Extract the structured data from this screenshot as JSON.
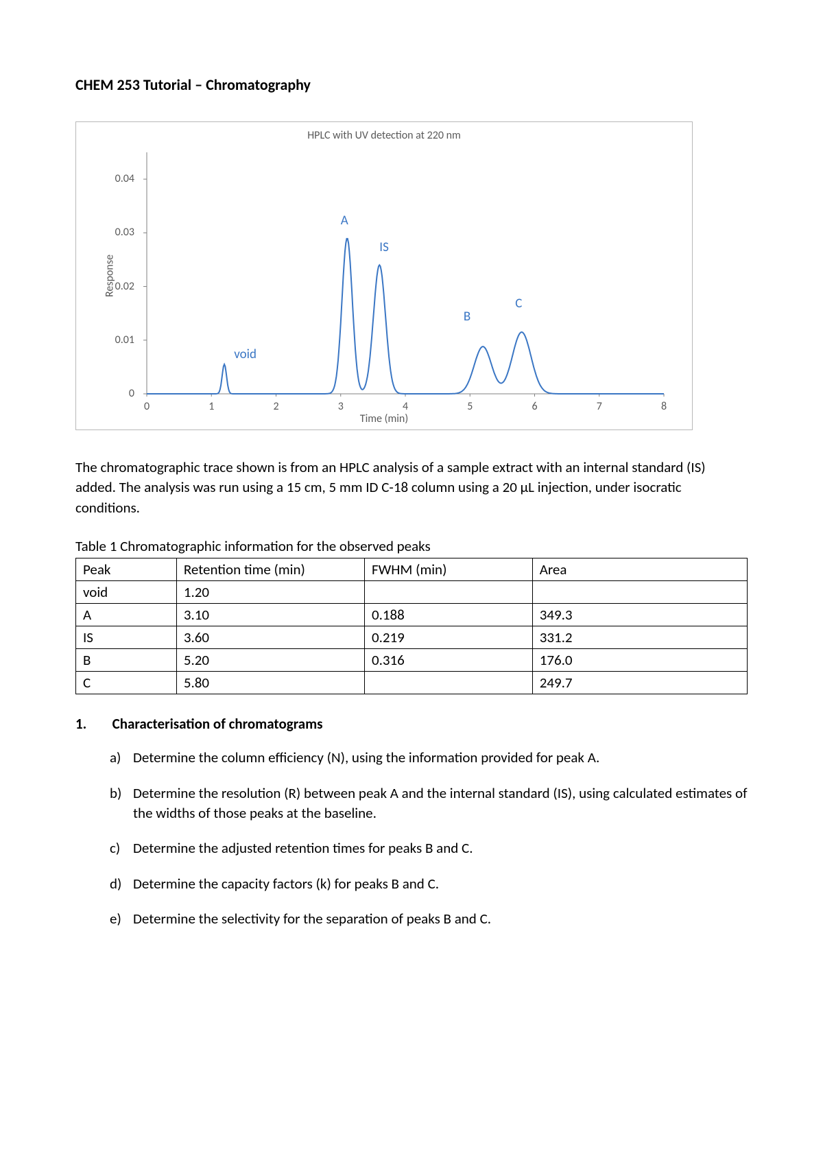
{
  "title": "CHEM 253 Tutorial – Chromatography",
  "chart": {
    "type": "line",
    "title": "HPLC with UV detection at 220 nm",
    "x_axis_label": "Time (min)",
    "y_axis_label": "Response",
    "xlim": [
      0,
      8
    ],
    "ylim": [
      0,
      0.045
    ],
    "x_ticks": [
      0,
      1,
      2,
      3,
      4,
      5,
      6,
      7,
      8
    ],
    "y_ticks": [
      0,
      0.01,
      0.02,
      0.03,
      0.04
    ],
    "line_color": "#3a76c4",
    "axis_color": "#808080",
    "label_color": "#3a76c4",
    "tick_label_color": "#595959",
    "title_fontsize": 16,
    "tick_fontsize": 16,
    "label_fontsize": 19,
    "peak_labels": [
      {
        "text": "void",
        "x_min": 1.35,
        "y_resp": 0.006
      },
      {
        "text": "A",
        "x_min": 3.0,
        "y_resp": 0.031
      },
      {
        "text": "IS",
        "x_min": 3.6,
        "y_resp": 0.026
      },
      {
        "text": "B",
        "x_min": 4.9,
        "y_resp": 0.013
      },
      {
        "text": "C",
        "x_min": 5.7,
        "y_resp": 0.0155
      }
    ],
    "peaks": [
      {
        "rt": 1.2,
        "height": 0.0055,
        "fwhm": 0.08
      },
      {
        "rt": 3.1,
        "height": 0.029,
        "fwhm": 0.188
      },
      {
        "rt": 3.6,
        "height": 0.024,
        "fwhm": 0.219
      },
      {
        "rt": 5.2,
        "height": 0.0088,
        "fwhm": 0.316
      },
      {
        "rt": 5.8,
        "height": 0.0115,
        "fwhm": 0.34
      }
    ],
    "baseline": 0.0
  },
  "paragraph": "The chromatographic trace shown is from an HPLC analysis of a sample extract with an internal standard (IS) added. The analysis was run using a 15 cm, 5 mm ID C-18 column using a 20 μL injection, under isocratic conditions.",
  "table": {
    "caption": "Table 1 Chromatographic information for the observed peaks",
    "columns": [
      "Peak",
      "Retention time (min)",
      "FWHM (min)",
      "Area"
    ],
    "column_widths_pct": [
      15,
      28,
      25,
      32
    ],
    "rows": [
      [
        "void",
        "1.20",
        "",
        ""
      ],
      [
        "A",
        "3.10",
        "0.188",
        "349.3"
      ],
      [
        "IS",
        "3.60",
        "0.219",
        "331.2"
      ],
      [
        "B",
        "5.20",
        "0.316",
        "176.0"
      ],
      [
        "C",
        "5.80",
        "",
        "249.7"
      ]
    ]
  },
  "section": {
    "number": "1.",
    "title": "Characterisation of chromatograms",
    "questions": [
      {
        "letter": "a)",
        "text": "Determine the column efficiency (N), using the information provided for peak A."
      },
      {
        "letter": "b)",
        "text": "Determine the resolution (R) between peak A and the internal standard (IS), using calculated estimates of the widths of those peaks at the baseline."
      },
      {
        "letter": "c)",
        "text": "Determine the adjusted retention times for peaks B and C."
      },
      {
        "letter": "d)",
        "text": "Determine the capacity factors (k) for peaks B and C."
      },
      {
        "letter": "e)",
        "text": "Determine the selectivity for the separation of peaks B and C."
      }
    ]
  }
}
